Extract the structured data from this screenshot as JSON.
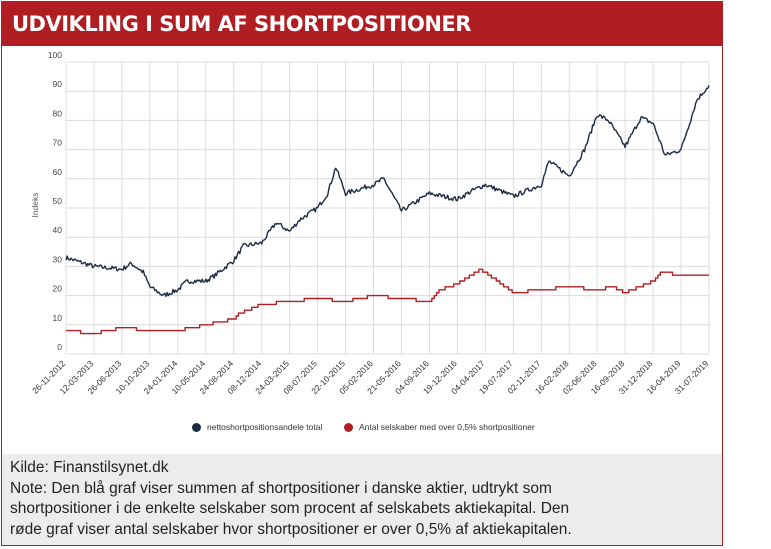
{
  "title": "UDVIKLING I SUM AF SHORTPOSITIONER",
  "colors": {
    "title_bg": "#b01e23",
    "series_blue": "#1b2a44",
    "series_red": "#b01e23"
  },
  "chart_data": {
    "type": "line",
    "ylabel": "Indeks",
    "ylim": [
      0,
      100
    ],
    "yticks": [
      0,
      10,
      20,
      30,
      40,
      50,
      60,
      70,
      80,
      90,
      100
    ],
    "x_tick_labels": [
      "26-11-2012",
      "12-03-2013",
      "26-06-2013",
      "10-10-2013",
      "24-01-2014",
      "10-05-2014",
      "24-08-2014",
      "08-12-2014",
      "24-03-2015",
      "08-07-2015",
      "22-10-2015",
      "05-02-2016",
      "21-05-2016",
      "04-09-2016",
      "19-12-2016",
      "04-04-2017",
      "19-07-2017",
      "02-11-2017",
      "16-02-2018",
      "02-06-2018",
      "16-09-2018",
      "31-12-2018",
      "16-04-2019",
      "31-07-2019"
    ],
    "grid": true,
    "legend_position": "bottom",
    "series": [
      {
        "name": "nettoshortpositionsandele total",
        "color": "#1b2a44",
        "points": [
          [
            "26-11-2012",
            33
          ],
          [
            "12-03-2013",
            30
          ],
          [
            "26-06-2013",
            29
          ],
          [
            "01-08-2013",
            31
          ],
          [
            "15-09-2013",
            28
          ],
          [
            "10-10-2013",
            23
          ],
          [
            "01-12-2013",
            20
          ],
          [
            "24-01-2014",
            22
          ],
          [
            "01-03-2014",
            25
          ],
          [
            "10-05-2014",
            25
          ],
          [
            "15-06-2014",
            27
          ],
          [
            "24-08-2014",
            32
          ],
          [
            "30-09-2014",
            37
          ],
          [
            "08-12-2014",
            38
          ],
          [
            "01-02-2015",
            45
          ],
          [
            "24-03-2015",
            42
          ],
          [
            "01-05-2015",
            46
          ],
          [
            "08-07-2015",
            50
          ],
          [
            "15-08-2015",
            55
          ],
          [
            "15-09-2015",
            64
          ],
          [
            "22-10-2015",
            55
          ],
          [
            "05-02-2016",
            58
          ],
          [
            "15-03-2016",
            60
          ],
          [
            "21-05-2016",
            49
          ],
          [
            "04-09-2016",
            55
          ],
          [
            "19-12-2016",
            53
          ],
          [
            "15-02-2017",
            56
          ],
          [
            "04-04-2017",
            58
          ],
          [
            "19-07-2017",
            54
          ],
          [
            "02-11-2017",
            58
          ],
          [
            "01-12-2017",
            66
          ],
          [
            "16-02-2018",
            61
          ],
          [
            "15-04-2018",
            70
          ],
          [
            "02-06-2018",
            82
          ],
          [
            "15-07-2018",
            80
          ],
          [
            "16-09-2018",
            71
          ],
          [
            "15-11-2018",
            81
          ],
          [
            "31-12-2018",
            79
          ],
          [
            "15-02-2019",
            68
          ],
          [
            "16-04-2019",
            70
          ],
          [
            "15-06-2019",
            87
          ],
          [
            "31-07-2019",
            92
          ]
        ]
      },
      {
        "name": "Antal selskaber med over 0,5% shortpositioner",
        "color": "#b01e23",
        "points": [
          [
            "26-11-2012",
            8
          ],
          [
            "12-03-2013",
            7
          ],
          [
            "26-06-2013",
            9
          ],
          [
            "10-10-2013",
            8
          ],
          [
            "24-01-2014",
            8
          ],
          [
            "10-05-2014",
            10
          ],
          [
            "24-08-2014",
            12
          ],
          [
            "15-09-2014",
            14
          ],
          [
            "08-12-2014",
            17
          ],
          [
            "24-03-2015",
            18
          ],
          [
            "08-07-2015",
            19
          ],
          [
            "22-10-2015",
            18
          ],
          [
            "05-02-2016",
            20
          ],
          [
            "21-05-2016",
            19
          ],
          [
            "04-09-2016",
            18
          ],
          [
            "15-10-2016",
            22
          ],
          [
            "19-12-2016",
            24
          ],
          [
            "15-03-2017",
            29
          ],
          [
            "04-04-2017",
            28
          ],
          [
            "19-07-2017",
            21
          ],
          [
            "02-11-2017",
            22
          ],
          [
            "16-02-2018",
            23
          ],
          [
            "02-06-2018",
            22
          ],
          [
            "01-08-2018",
            23
          ],
          [
            "16-09-2018",
            21
          ],
          [
            "31-12-2018",
            25
          ],
          [
            "01-02-2019",
            28
          ],
          [
            "16-04-2019",
            27
          ],
          [
            "31-07-2019",
            27
          ]
        ]
      }
    ]
  },
  "notes": {
    "source": "Kilde: Finanstilsynet.dk",
    "line1": "Note: Den blå graf viser summen af shortpositioner i danske aktier, udtrykt som",
    "line2": "shortpositioner i de enkelte selskaber som procent af selskabets aktiekapital. Den",
    "line3": "røde graf viser antal selskaber hvor shortpositioner er over 0,5% af aktiekapitalen."
  }
}
